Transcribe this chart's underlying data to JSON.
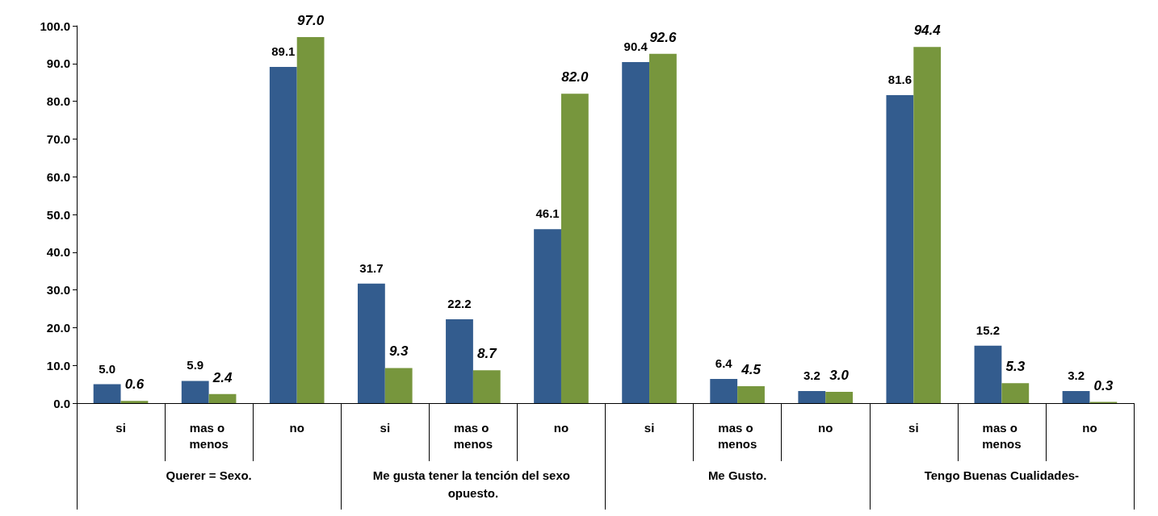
{
  "chart_data": {
    "type": "bar",
    "categories": [
      "si",
      "mas o menos",
      "no",
      "si",
      "mas o menos",
      "no",
      "si",
      "mas o menos",
      "no",
      "si",
      "mas o menos",
      "no"
    ],
    "annotations": [
      "Querer = Sexo.",
      "Me gusta tener la tención del sexo opuesto.",
      "Me Gusto.",
      "Tengo Buenas Cualidades-"
    ],
    "series": [
      {
        "color": "#335c8e",
        "values": [
          5.0,
          5.9,
          89.1,
          31.7,
          22.2,
          46.1,
          90.4,
          6.4,
          3.2,
          81.6,
          15.2,
          3.2
        ],
        "value_labels": [
          "5.0",
          "5.9",
          "89.1",
          "31.7",
          "22.2",
          "46.1",
          "90.4",
          "6.4",
          "3.2",
          "81.6",
          "15.2",
          "3.2"
        ]
      },
      {
        "color": "#77963d",
        "values": [
          0.6,
          2.4,
          97.0,
          9.3,
          8.7,
          82.0,
          92.6,
          4.5,
          3.0,
          94.4,
          5.3,
          0.3
        ],
        "value_labels": [
          "0.6",
          "2.4",
          "97.0",
          "9.3",
          "8.7",
          "82.0",
          "92.6",
          "4.5",
          "3.0",
          "94.4",
          "5.3",
          "0.3"
        ]
      }
    ],
    "ylim": [
      0,
      100
    ],
    "yticks": [
      {
        "value": 0,
        "label": "0.0"
      },
      {
        "value": 10,
        "label": "10.0"
      },
      {
        "value": 20,
        "label": "20.0"
      },
      {
        "value": 30,
        "label": "30.0"
      },
      {
        "value": 40,
        "label": "40.0"
      },
      {
        "value": 50,
        "label": "50.0"
      },
      {
        "value": 60,
        "label": "60.0"
      },
      {
        "value": 70,
        "label": "70.0"
      },
      {
        "value": 80,
        "label": "80.0"
      },
      {
        "value": 90,
        "label": "90.0"
      },
      {
        "value": 100,
        "label": "100.0"
      }
    ],
    "grid": false
  }
}
